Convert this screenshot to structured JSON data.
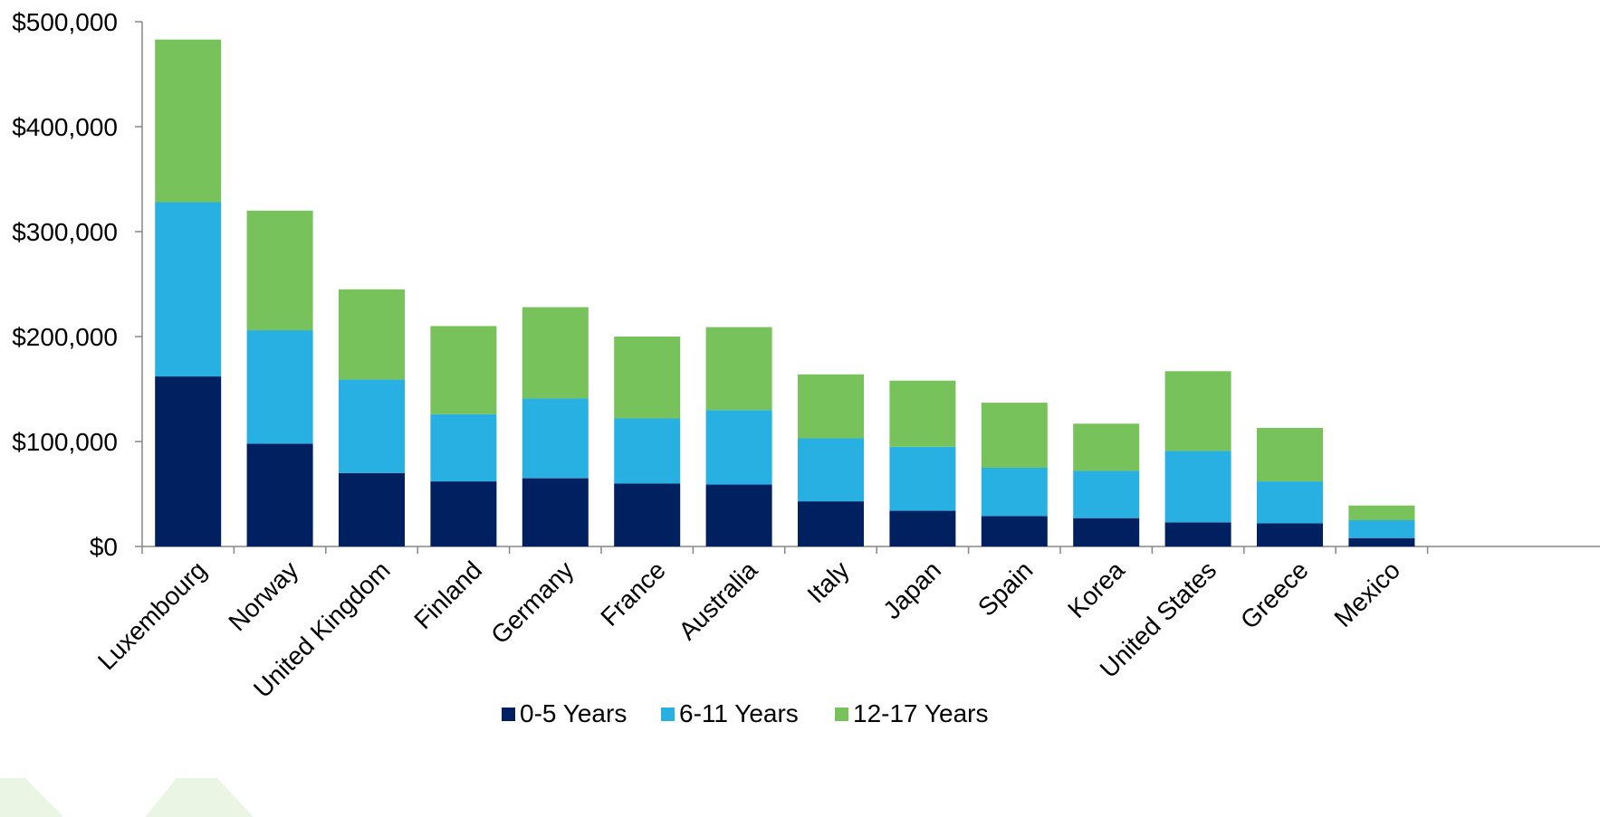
{
  "chart_data": {
    "type": "bar",
    "stacked": true,
    "categories": [
      "Luxembourg",
      "Norway",
      "United Kingdom",
      "Finland",
      "Germany",
      "France",
      "Australia",
      "Italy",
      "Japan",
      "Spain",
      "Korea",
      "United States",
      "Greece",
      "Mexico"
    ],
    "series": [
      {
        "name": "0-5 Years",
        "color": "#002060",
        "values": [
          162000,
          98000,
          70000,
          62000,
          65000,
          60000,
          59000,
          43000,
          34000,
          29000,
          27000,
          23000,
          22000,
          8000
        ]
      },
      {
        "name": "6-11 Years",
        "color": "#29B0E3",
        "values": [
          166000,
          108000,
          89000,
          64000,
          76000,
          62000,
          71000,
          60000,
          61000,
          46000,
          45000,
          68000,
          40000,
          17000
        ]
      },
      {
        "name": "12-17 Years",
        "color": "#77C25B",
        "values": [
          155000,
          114000,
          86000,
          84000,
          87000,
          78000,
          79000,
          61000,
          63000,
          62000,
          45000,
          76000,
          51000,
          14000
        ]
      }
    ],
    "y_ticks": [
      "$0",
      "$100,000",
      "$200,000",
      "$300,000",
      "$400,000",
      "$500,000"
    ],
    "ylim": [
      0,
      500000
    ],
    "grid": false,
    "legend_position": "bottom"
  }
}
